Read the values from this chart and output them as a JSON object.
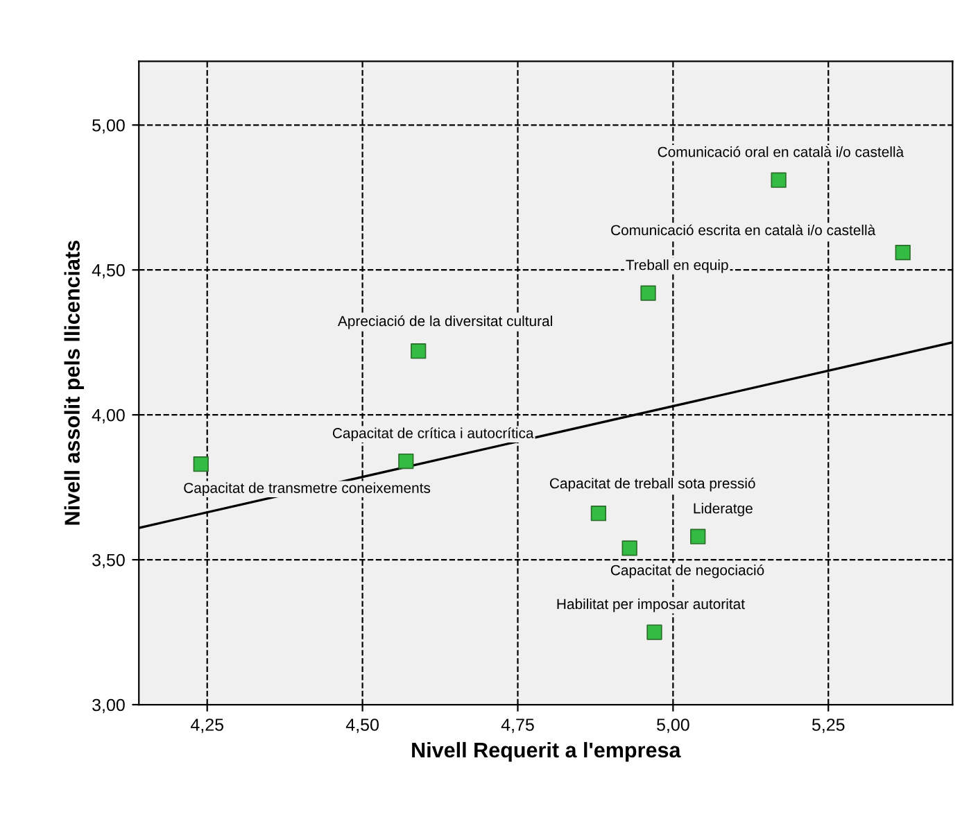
{
  "chart_data": {
    "type": "scatter",
    "xlabel": "Nivell Requerit a l'empresa",
    "ylabel": "Nivell assolit pels llicenciats",
    "xlim": [
      4.14,
      5.45
    ],
    "ylim": [
      3.0,
      5.22
    ],
    "xticks": [
      {
        "value": 4.25,
        "label": "4,25"
      },
      {
        "value": 4.5,
        "label": "4,50"
      },
      {
        "value": 4.75,
        "label": "4,75"
      },
      {
        "value": 5.0,
        "label": "5,00"
      },
      {
        "value": 5.25,
        "label": "5,25"
      }
    ],
    "yticks": [
      {
        "value": 3.0,
        "label": "3,00"
      },
      {
        "value": 3.5,
        "label": "3,50"
      },
      {
        "value": 4.0,
        "label": "4,00"
      },
      {
        "value": 4.5,
        "label": "4,50"
      },
      {
        "value": 5.0,
        "label": "5,00"
      }
    ],
    "grid": true,
    "series": [
      {
        "marker": "square",
        "color": "#33bb44",
        "x": [
          5.17,
          5.37,
          4.96,
          4.59,
          4.57,
          4.24,
          4.88,
          5.04,
          4.93,
          4.97
        ],
        "values": [
          4.81,
          4.56,
          4.42,
          4.22,
          3.84,
          3.83,
          3.66,
          3.58,
          3.54,
          3.25
        ]
      },
      {
        "type": "line",
        "color": "#000000",
        "x": [
          4.14,
          5.45
        ],
        "values": [
          3.61,
          4.25
        ]
      }
    ],
    "annotations": [
      {
        "text": "Comunicació oral en català i/o castellà",
        "x": 5.17,
        "y": 4.81
      },
      {
        "text": "Comunicació escrita en català i/o castellà",
        "x": 5.37,
        "y": 4.56
      },
      {
        "text": "Treball en equip",
        "x": 4.96,
        "y": 4.42
      },
      {
        "text": "Apreciació de la diversitat cultural",
        "x": 4.59,
        "y": 4.22
      },
      {
        "text": "Capacitat de crítica i autocrítica",
        "x": 4.57,
        "y": 3.84
      },
      {
        "text": "Capacitat de transmetre coneixements",
        "x": 4.24,
        "y": 3.83
      },
      {
        "text": "Capacitat de treball sota pressió",
        "x": 4.88,
        "y": 3.66
      },
      {
        "text": "Lideratge",
        "x": 5.04,
        "y": 3.58
      },
      {
        "text": "Capacitat de negociació",
        "x": 4.93,
        "y": 3.54
      },
      {
        "text": "Habilitat per imposar autoritat",
        "x": 4.97,
        "y": 3.25
      }
    ]
  }
}
